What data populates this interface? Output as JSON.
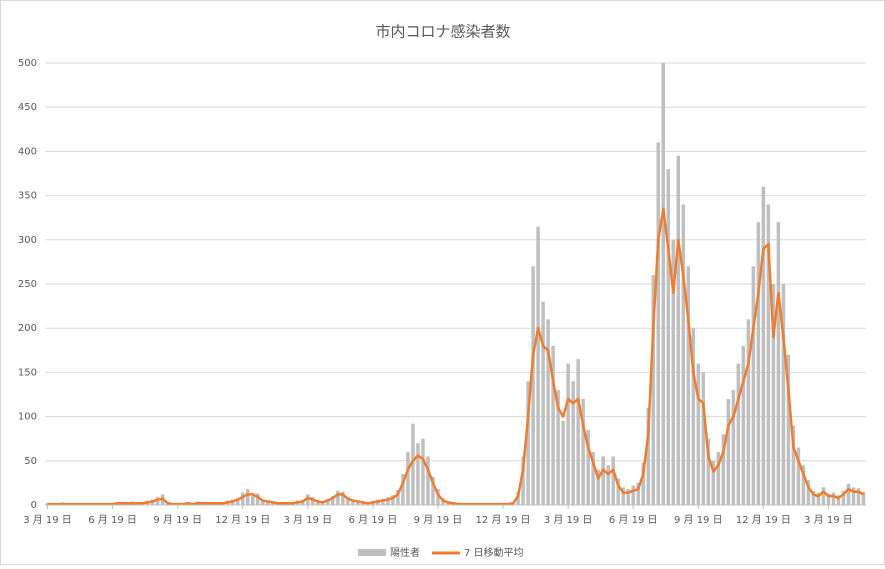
{
  "chart_data": {
    "type": "bar-line",
    "title": "市内コロナ感染者数",
    "categories": [
      "3 月 19 日",
      null,
      null,
      null,
      null,
      null,
      null,
      null,
      null,
      null,
      null,
      null,
      null,
      "6 月 19 日",
      null,
      null,
      null,
      null,
      null,
      null,
      null,
      null,
      null,
      null,
      null,
      null,
      "9 月 19 日",
      null,
      null,
      null,
      null,
      null,
      null,
      null,
      null,
      null,
      null,
      null,
      null,
      "12 月 19 日",
      null,
      null,
      null,
      null,
      null,
      null,
      null,
      null,
      null,
      null,
      null,
      null,
      "3 月 19 日",
      null,
      null,
      null,
      null,
      null,
      null,
      null,
      null,
      null,
      null,
      null,
      null,
      "6 月 19 日",
      null,
      null,
      null,
      null,
      null,
      null,
      null,
      null,
      null,
      null,
      null,
      null,
      "9 月 19 日",
      null,
      null,
      null,
      null,
      null,
      null,
      null,
      null,
      null,
      null,
      null,
      null,
      "12 月 19 日",
      null,
      null,
      null,
      null,
      null,
      null,
      null,
      null,
      null,
      null,
      null,
      null,
      "3 月 19 日",
      null,
      null,
      null,
      null,
      null,
      null,
      null,
      null,
      null,
      null,
      null,
      null,
      "6 月 19 日",
      null,
      null,
      null,
      null,
      null,
      null,
      null,
      null,
      null,
      null,
      null,
      null,
      "9 月 19 日",
      null,
      null,
      null,
      null,
      null,
      null,
      null,
      null,
      null,
      null,
      null,
      null,
      "12 月 19 日",
      null,
      null,
      null,
      null,
      null,
      null,
      null,
      null,
      null,
      null,
      null,
      null,
      "3 月 19 日",
      null,
      null,
      null,
      null,
      null,
      null,
      null
    ],
    "series": [
      {
        "name": "陽性者",
        "color": "#bfbfbf",
        "kind": "bar",
        "values": [
          2,
          0,
          1,
          3,
          0,
          1,
          2,
          0,
          1,
          1,
          0,
          2,
          1,
          0,
          3,
          1,
          2,
          4,
          1,
          3,
          5,
          6,
          9,
          12,
          3,
          1,
          0,
          2,
          3,
          1,
          4,
          2,
          3,
          1,
          3,
          2,
          5,
          6,
          8,
          14,
          18,
          10,
          13,
          6,
          5,
          4,
          2,
          3,
          1,
          3,
          5,
          6,
          12,
          9,
          5,
          4,
          7,
          10,
          16,
          15,
          9,
          6,
          5,
          4,
          2,
          4,
          6,
          7,
          9,
          11,
          17,
          35,
          60,
          92,
          70,
          75,
          55,
          32,
          18,
          8,
          4,
          3,
          1,
          2,
          1,
          0,
          2,
          1,
          1,
          0,
          2,
          1,
          1,
          3,
          15,
          55,
          140,
          270,
          315,
          230,
          210,
          180,
          130,
          95,
          160,
          140,
          165,
          120,
          85,
          60,
          40,
          55,
          45,
          55,
          30,
          20,
          18,
          22,
          25,
          48,
          110,
          260,
          410,
          500,
          380,
          300,
          395,
          340,
          270,
          200,
          160,
          150,
          75,
          50,
          60,
          80,
          120,
          130,
          160,
          180,
          210,
          270,
          320,
          360,
          340,
          250,
          320,
          250,
          170,
          90,
          65,
          45,
          28,
          16,
          14,
          20,
          13,
          14,
          11,
          16,
          24,
          20,
          19,
          15
        ]
      },
      {
        "name": "7 日移動平均",
        "color": "#ed7d31",
        "kind": "line",
        "values": [
          1,
          1,
          1,
          1,
          1,
          1,
          1,
          1,
          1,
          1,
          1,
          1,
          1,
          1,
          2,
          2,
          2,
          2,
          2,
          2,
          3,
          4,
          6,
          7,
          2,
          1,
          1,
          1,
          2,
          1,
          2,
          2,
          2,
          2,
          2,
          2,
          3,
          4,
          6,
          9,
          12,
          12,
          9,
          5,
          4,
          3,
          2,
          2,
          2,
          2,
          3,
          4,
          8,
          6,
          4,
          3,
          5,
          8,
          12,
          12,
          7,
          5,
          4,
          3,
          2,
          3,
          4,
          5,
          6,
          8,
          12,
          25,
          40,
          50,
          56,
          52,
          40,
          25,
          12,
          5,
          3,
          2,
          1,
          1,
          1,
          1,
          1,
          1,
          1,
          1,
          1,
          1,
          1,
          2,
          10,
          40,
          100,
          170,
          200,
          180,
          175,
          140,
          110,
          100,
          120,
          115,
          120,
          90,
          65,
          48,
          30,
          40,
          35,
          40,
          22,
          14,
          14,
          16,
          18,
          35,
          80,
          200,
          300,
          335,
          290,
          240,
          300,
          260,
          210,
          150,
          120,
          115,
          55,
          38,
          45,
          60,
          90,
          100,
          120,
          140,
          160,
          200,
          240,
          290,
          295,
          190,
          240,
          190,
          130,
          65,
          50,
          35,
          20,
          12,
          10,
          15,
          10,
          10,
          8,
          12,
          18,
          15,
          15,
          12
        ]
      }
    ],
    "ylim": [
      0,
      500
    ],
    "yticks": [
      0,
      50,
      100,
      150,
      200,
      250,
      300,
      350,
      400,
      450,
      500
    ],
    "grid": true,
    "legend": "bottom"
  }
}
